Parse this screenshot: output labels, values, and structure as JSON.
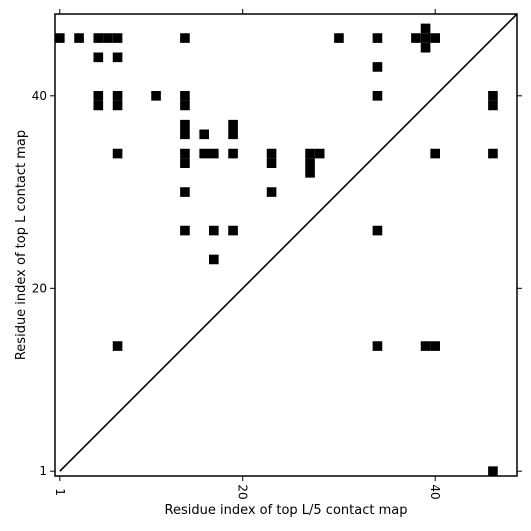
{
  "chart_data": {
    "type": "heatmap",
    "xlabel": "Residue index of top L/5 contact map",
    "ylabel": "Residue index of top L contact map",
    "xlim": [
      0.5,
      48.5
    ],
    "ylim": [
      0.5,
      48.5
    ],
    "x_ticks": [
      1,
      20,
      40
    ],
    "y_ticks": [
      1,
      20,
      40
    ],
    "diagonal": {
      "from": [
        1,
        1
      ],
      "to": [
        48.5,
        48.5
      ]
    },
    "cell_color": "#000000",
    "cells": [
      [
        1,
        46
      ],
      [
        3,
        46
      ],
      [
        5,
        46
      ],
      [
        6,
        46
      ],
      [
        7,
        46
      ],
      [
        14,
        46
      ],
      [
        30,
        46
      ],
      [
        34,
        46
      ],
      [
        38,
        46
      ],
      [
        39,
        46
      ],
      [
        40,
        46
      ],
      [
        39,
        47
      ],
      [
        39,
        45
      ],
      [
        5,
        44
      ],
      [
        7,
        44
      ],
      [
        34,
        43
      ],
      [
        5,
        40
      ],
      [
        5,
        39
      ],
      [
        7,
        40
      ],
      [
        7,
        39
      ],
      [
        11,
        40
      ],
      [
        14,
        40
      ],
      [
        14,
        39
      ],
      [
        34,
        40
      ],
      [
        46,
        40
      ],
      [
        46,
        39
      ],
      [
        14,
        37
      ],
      [
        14,
        36
      ],
      [
        16,
        36
      ],
      [
        19,
        37
      ],
      [
        19,
        36
      ],
      [
        7,
        34
      ],
      [
        14,
        34
      ],
      [
        14,
        33
      ],
      [
        16,
        34
      ],
      [
        17,
        34
      ],
      [
        19,
        34
      ],
      [
        23,
        34
      ],
      [
        23,
        33
      ],
      [
        27,
        34
      ],
      [
        28,
        34
      ],
      [
        27,
        33
      ],
      [
        27,
        32
      ],
      [
        40,
        34
      ],
      [
        46,
        34
      ],
      [
        14,
        30
      ],
      [
        23,
        30
      ],
      [
        14,
        26
      ],
      [
        17,
        26
      ],
      [
        19,
        26
      ],
      [
        34,
        26
      ],
      [
        17,
        23
      ],
      [
        7,
        14
      ],
      [
        34,
        14
      ],
      [
        39,
        14
      ],
      [
        40,
        14
      ],
      [
        46,
        1
      ]
    ]
  }
}
